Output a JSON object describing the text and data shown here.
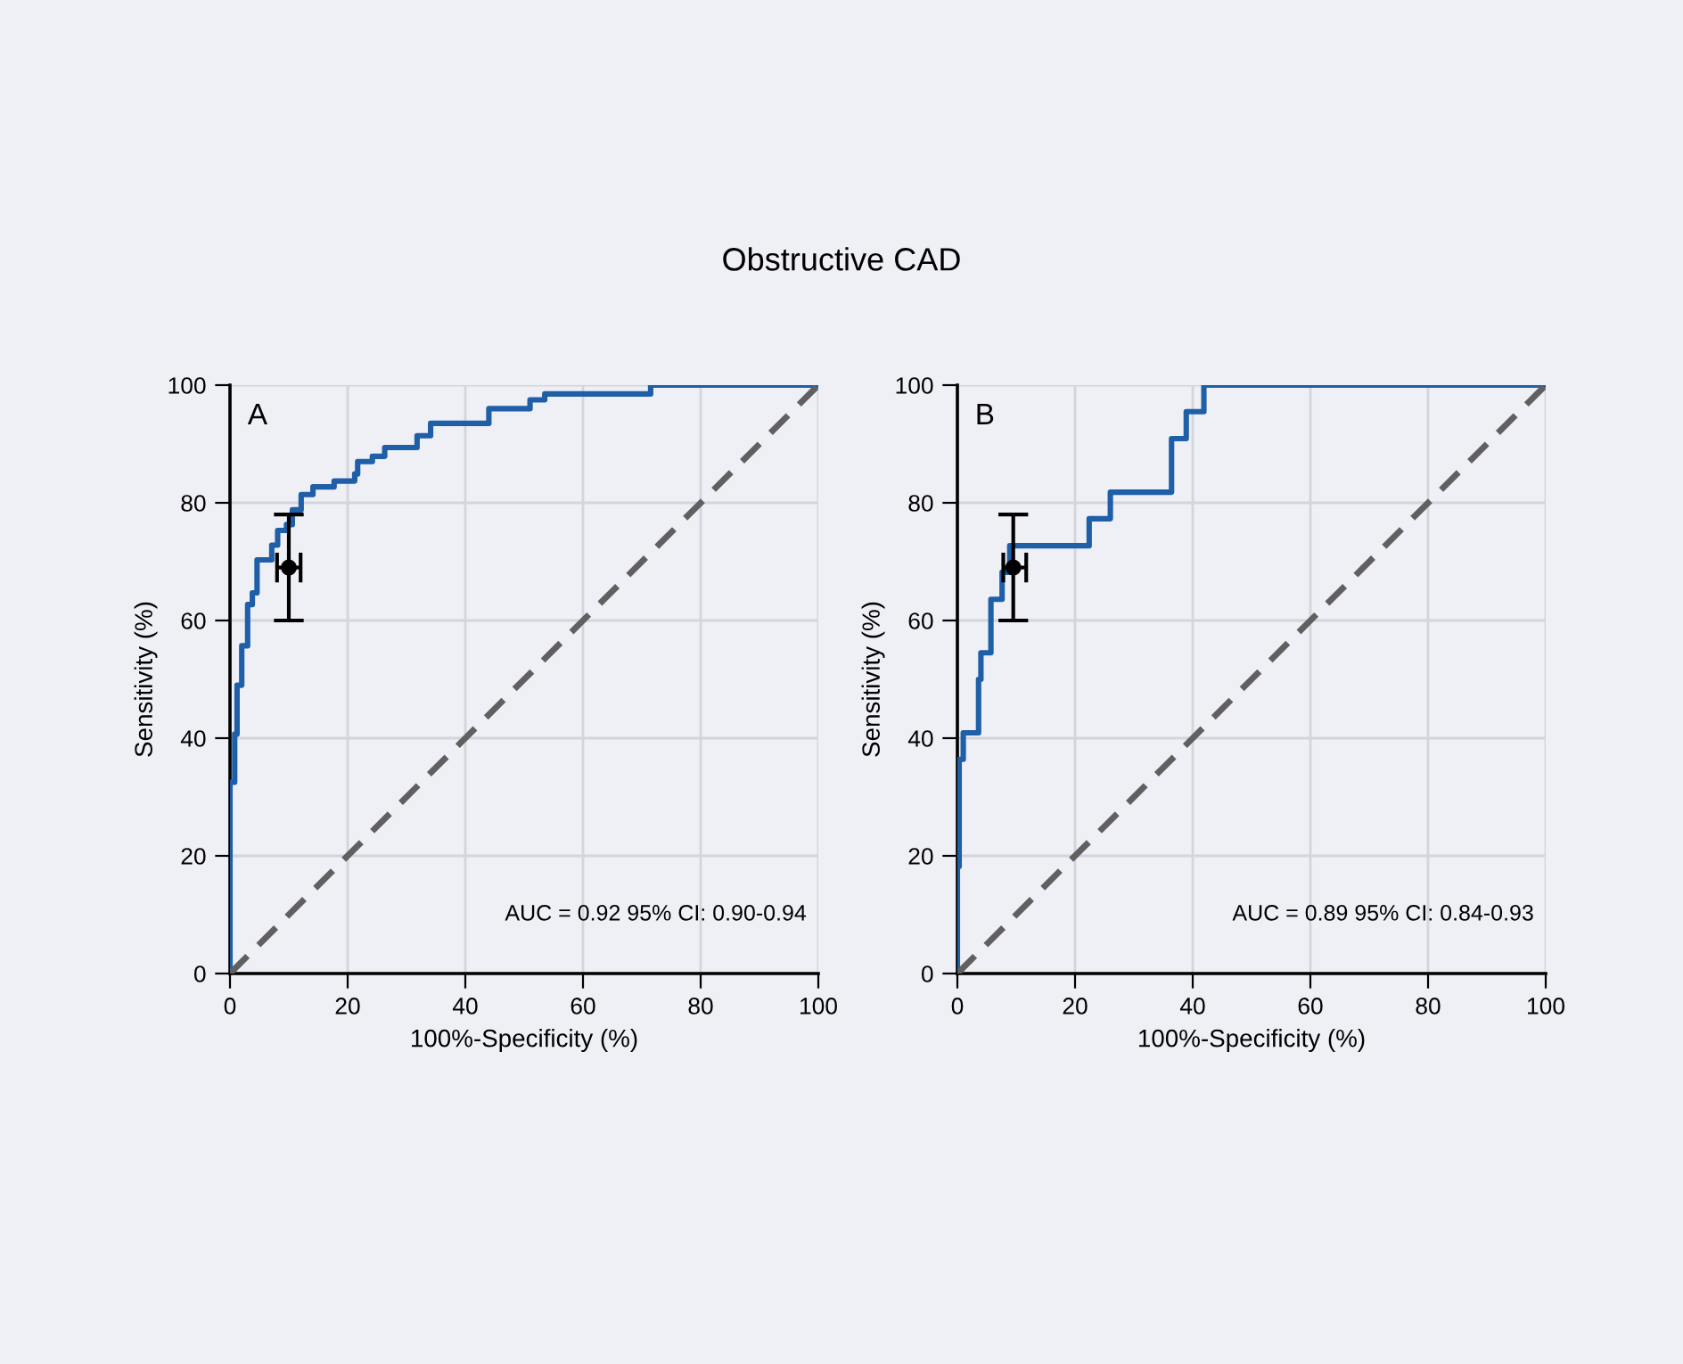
{
  "chart_data": [
    {
      "type": "line",
      "title": "Obstructive CAD",
      "xlabel": "100%-Specificity (%)",
      "ylabel": "Sensitivity (%)",
      "xlim": [
        0,
        100
      ],
      "ylim": [
        0,
        100
      ],
      "xticks": [
        0,
        20,
        40,
        60,
        80,
        100
      ],
      "yticks": [
        0,
        20,
        40,
        60,
        80,
        100
      ],
      "grid": true,
      "marker": "none",
      "annotations": [
        "A",
        "AUC = 0.92 95% CI: 0.90-0.94"
      ],
      "series": [
        {
          "type": "step",
          "color": "#1f5fa8",
          "line_style": "solid",
          "x": [
            0,
            0,
            0.8,
            1.2,
            2,
            3,
            3.8,
            4.6,
            6.6,
            7.1,
            8.1,
            9.6,
            10.6,
            12.1,
            14.1,
            17.7,
            21.2,
            21.7,
            24.2,
            26.3,
            31.3,
            31.8,
            34.1,
            43.4,
            44,
            50.5,
            51,
            53.5,
            71.5,
            71.5,
            100
          ],
          "values": [
            0,
            32.5,
            40.7,
            49,
            55.7,
            62.7,
            64.7,
            70.3,
            70.3,
            72.8,
            75.3,
            76.3,
            78.8,
            81.4,
            82.7,
            83.7,
            84.9,
            87,
            87.9,
            89.4,
            89.4,
            91.4,
            93.5,
            93.5,
            96,
            96,
            97.5,
            98.5,
            98.5,
            100,
            100
          ]
        },
        {
          "color": "#606060",
          "line_style": "dashed",
          "x": [
            0,
            100
          ],
          "values": [
            0,
            100
          ]
        },
        {
          "type": "scatter",
          "marker": "circle",
          "color": "#000000",
          "x": [
            10
          ],
          "values": [
            69
          ],
          "errors": [
            [
              60,
              78
            ]
          ],
          "xerrors": [
            [
              8,
              12
            ]
          ]
        }
      ]
    },
    {
      "type": "line",
      "xlabel": "100%-Specificity (%)",
      "ylabel": "Sensitivity (%)",
      "xlim": [
        0,
        100
      ],
      "ylim": [
        0,
        100
      ],
      "xticks": [
        0,
        20,
        40,
        60,
        80,
        100
      ],
      "yticks": [
        0,
        20,
        40,
        60,
        80,
        100
      ],
      "grid": true,
      "marker": "none",
      "annotations": [
        "B",
        "AUC = 0.89 95% CI: 0.84-0.93"
      ],
      "series": [
        {
          "color": "#1f5fa8",
          "line_style": "solid",
          "x": [
            0,
            0,
            0.3,
            0.3,
            1,
            1,
            3.6,
            3.6,
            4,
            4,
            5.7,
            5.7,
            7.6,
            7.6,
            8.9,
            8.9,
            22.4,
            22.4,
            26,
            26,
            36.4,
            36.4,
            38.9,
            38.9,
            41.9,
            41.9,
            100
          ],
          "values": [
            0,
            18.2,
            18.2,
            36.4,
            36.4,
            40.9,
            40.9,
            50,
            50,
            54.5,
            54.5,
            63.6,
            63.6,
            68.2,
            68.2,
            72.7,
            72.7,
            77.3,
            77.3,
            81.8,
            81.8,
            90.9,
            90.9,
            95.5,
            95.5,
            100,
            100
          ]
        },
        {
          "color": "#606060",
          "line_style": "dashed",
          "x": [
            0,
            100
          ],
          "values": [
            0,
            100
          ]
        },
        {
          "type": "scatter",
          "marker": "circle",
          "color": "#000000",
          "x": [
            9.5
          ],
          "values": [
            69
          ],
          "errors": [
            [
              60,
              78
            ]
          ],
          "xerrors": [
            [
              7.8,
              11.7
            ]
          ]
        }
      ]
    }
  ]
}
